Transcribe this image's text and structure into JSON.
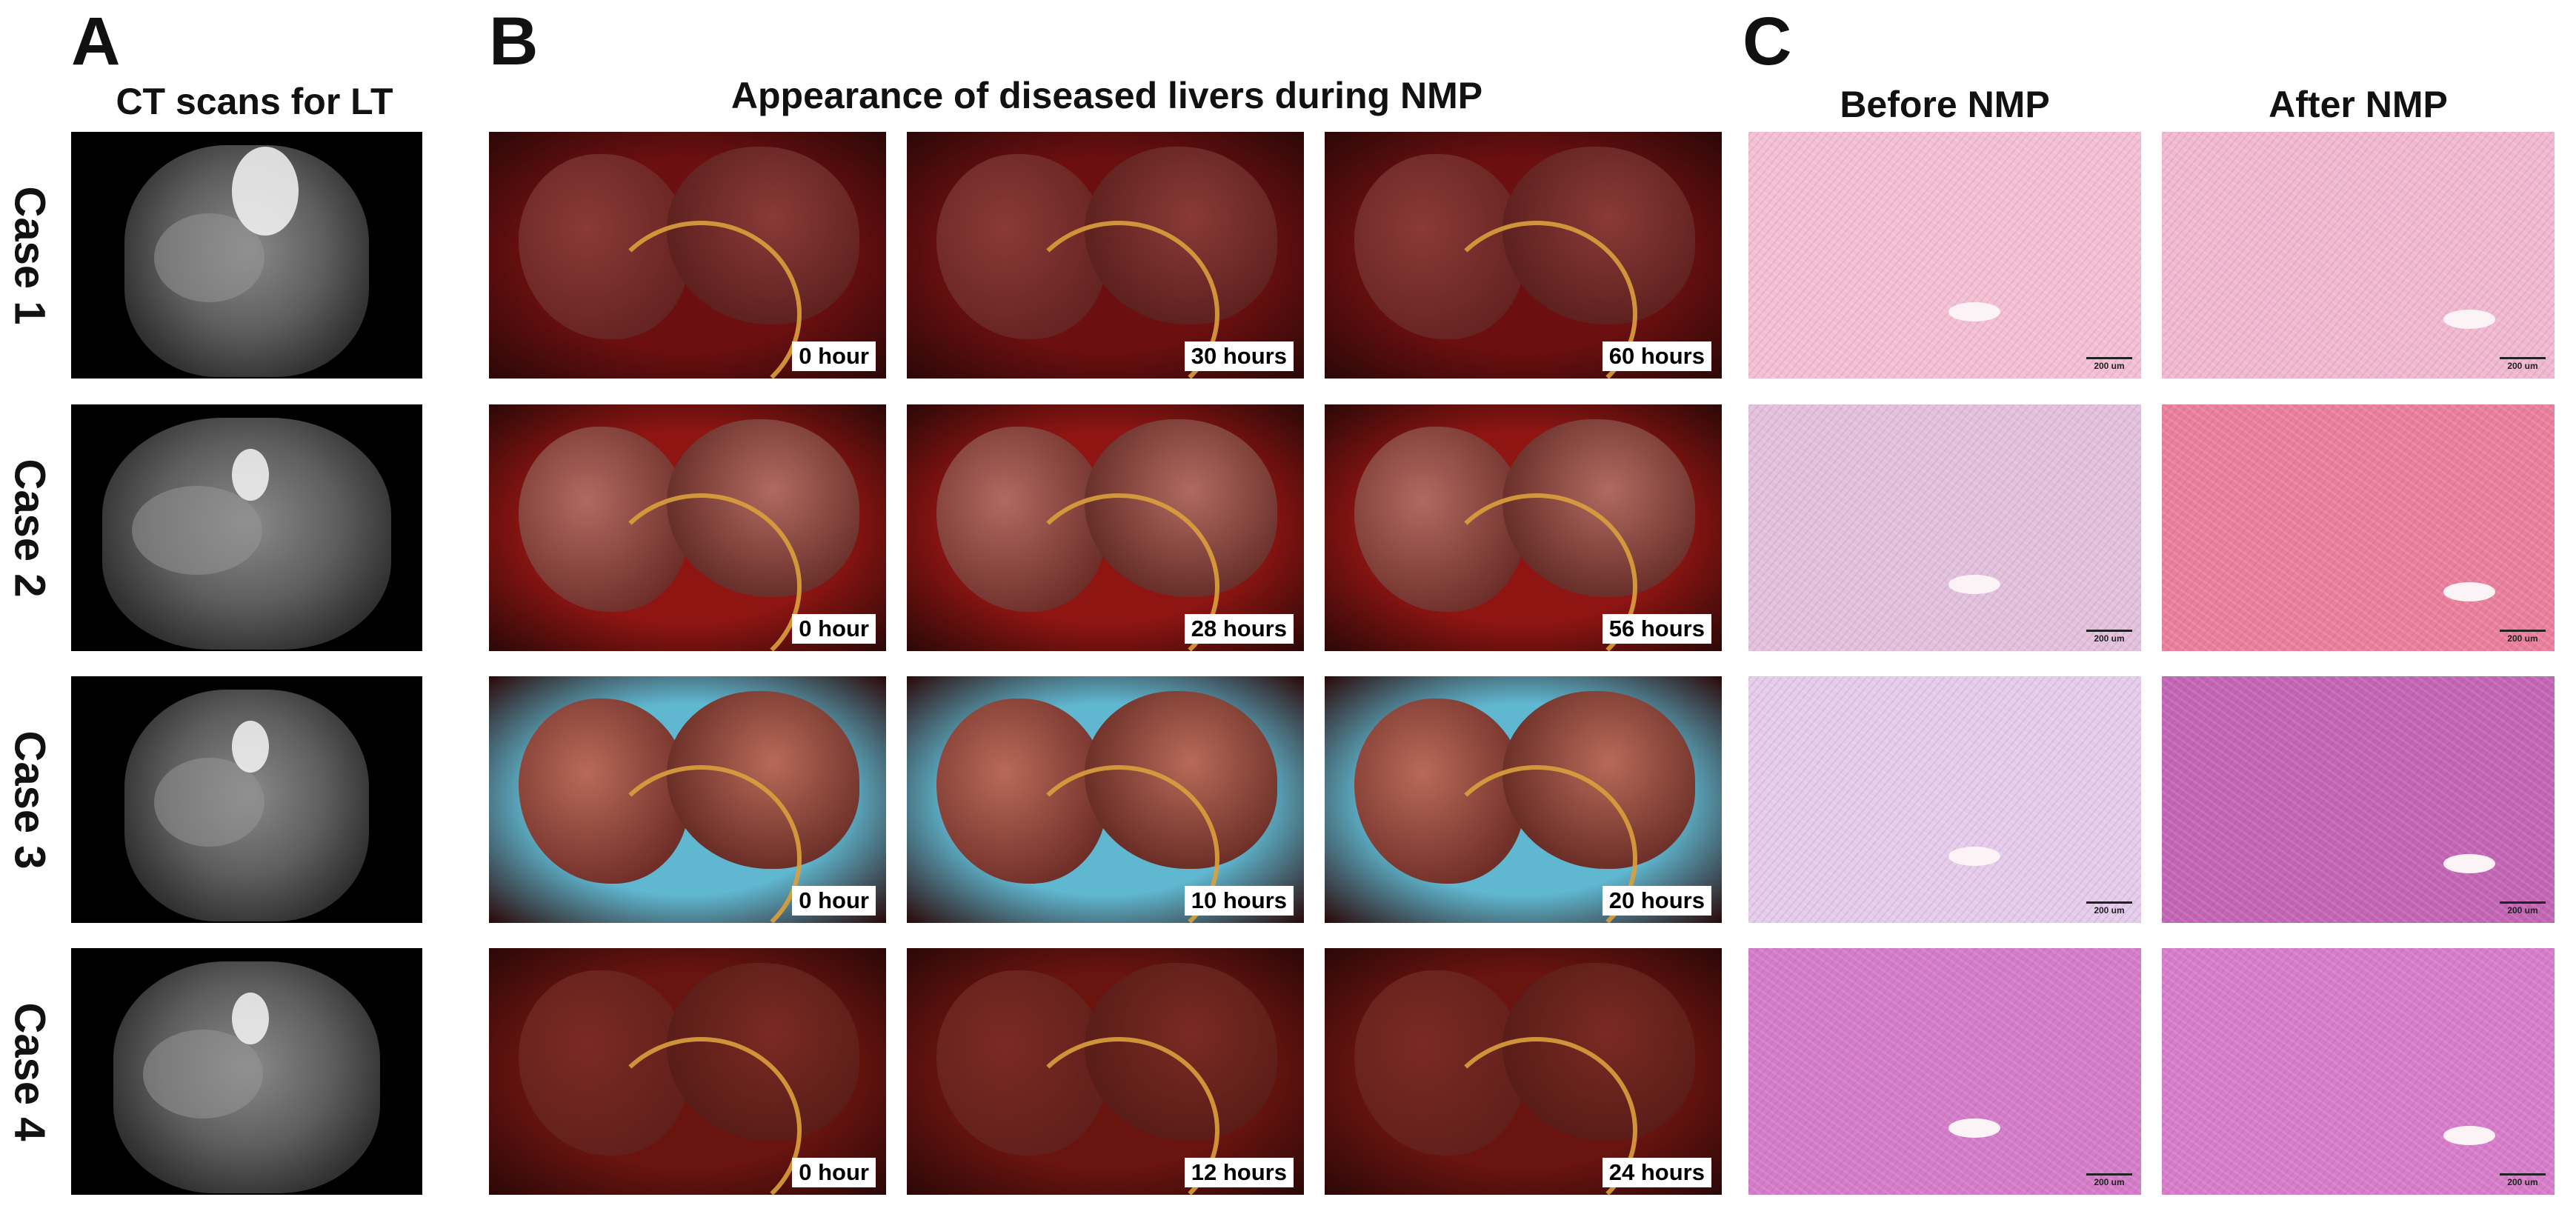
{
  "panels": {
    "a": {
      "letter": "A",
      "title": "CT scans for LT"
    },
    "b": {
      "letter": "B",
      "title": "Appearance of diseased livers during NMP"
    },
    "c": {
      "letter": "C",
      "col_before": "Before NMP",
      "col_after": "After NMP",
      "scale_label": "200 um"
    }
  },
  "cases": [
    {
      "label": "Case 1",
      "times": [
        "0 hour",
        "30 hours",
        "60 hours"
      ]
    },
    {
      "label": "Case 2",
      "times": [
        "0 hour",
        "28 hours",
        "56 hours"
      ]
    },
    {
      "label": "Case 3",
      "times": [
        "0 hour",
        "10 hours",
        "20 hours"
      ]
    },
    {
      "label": "Case 4",
      "times": [
        "0 hour",
        "12 hours",
        "24 hours"
      ]
    }
  ],
  "colors": {
    "photo_bg": [
      "#6b0f10",
      "#8e1512",
      "#5fb7d0",
      "#6a1410"
    ],
    "liver": [
      "#8a3a38",
      "#b06a60",
      "#b86a58",
      "#7a2a22"
    ],
    "histo_before": [
      "#f3bfd2",
      "#e2c1dc",
      "#e4ccea",
      "#d47cc8"
    ],
    "histo_after": [
      "#f0b9cf",
      "#ea7f9c",
      "#c265b4",
      "#d67cc8"
    ]
  }
}
